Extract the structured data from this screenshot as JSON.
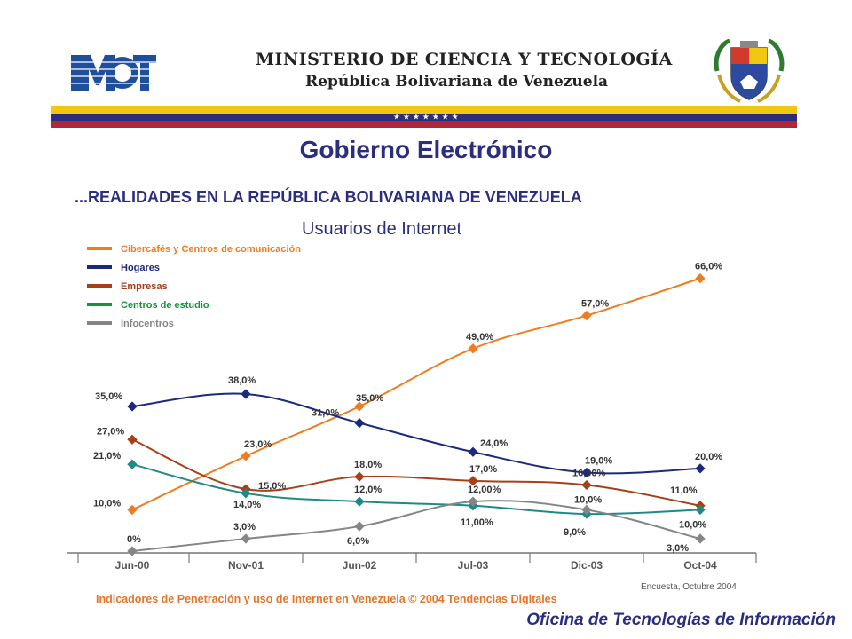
{
  "header": {
    "logo_text": "MCT",
    "ministry": "MINISTERIO DE CIENCIA Y TECNOLOGÍA",
    "republic": "República Bolivariana de Venezuela",
    "stars": "★ ★ ★ ★ ★ ★ ★"
  },
  "page_title": "Gobierno Electrónico",
  "subtitle": "...REALIDADES EN LA REPÚBLICA BOLIVARIANA DE VENEZUELA",
  "colors": {
    "title": "#2b2d7e",
    "flag_yellow": "#f1c80f",
    "flag_blue": "#2b2d7e",
    "flag_red": "#b0263b"
  },
  "chart_data": {
    "type": "line",
    "title": "Usuarios de Internet",
    "categories": [
      "Jun-00",
      "Nov-01",
      "Jun-02",
      "Jul-03",
      "Dic-03",
      "Oct-04"
    ],
    "ylim": [
      0,
      70
    ],
    "grid": false,
    "legend_position": "top-left",
    "series": [
      {
        "name": "Cibercafés y Centros de comunicación",
        "color": "#f07c22",
        "values": [
          10,
          23,
          35,
          49,
          57,
          66
        ],
        "labels": [
          "10,0%",
          "23,0%",
          "35,0%",
          "49,0%",
          "57,0%",
          "66,0%"
        ]
      },
      {
        "name": "Hogares",
        "color": "#1c2a7e",
        "values": [
          35,
          38,
          31,
          24,
          19,
          20
        ],
        "labels": [
          "35,0%",
          "38,0%",
          "31,0%",
          "24,0%",
          "19,0%",
          "20,0%"
        ]
      },
      {
        "name": "Empresas",
        "color": "#a6401a",
        "values": [
          27,
          15,
          18,
          17,
          16,
          11
        ],
        "labels": [
          "27,0%",
          "15,0%",
          "18,0%",
          "17,0%",
          "16,00%",
          "11,0%"
        ]
      },
      {
        "name": "Centros de estudio",
        "color": "#1f8a85",
        "values": [
          21,
          14,
          12,
          11,
          9,
          10
        ],
        "labels": [
          "21,0%",
          "14,0%",
          "12,0%",
          "11,00%",
          "9,0%",
          "10,0%"
        ]
      },
      {
        "name": "Infocentros",
        "color": "#858585",
        "values": [
          0,
          3,
          6,
          12,
          10,
          3
        ],
        "labels": [
          "0%",
          "3,0%",
          "6,0%",
          "12,00%",
          "10,0%",
          "3,0%"
        ]
      }
    ],
    "legend_colors": [
      "#f07c22",
      "#1c2a7e",
      "#a6401a",
      "#16923a",
      "#858585"
    ]
  },
  "footer": {
    "source": "Indicadores de Penetración y uso de Internet en Venezuela  © 2004 Tendencias Digitales",
    "survey": "Encuesta, Octubre 2004",
    "office": "Oficina de Tecnologías de Información"
  }
}
